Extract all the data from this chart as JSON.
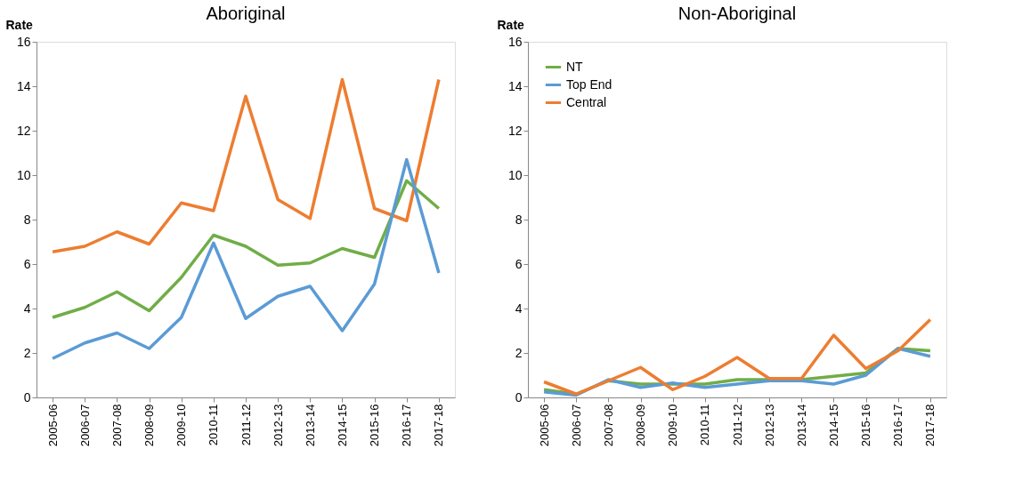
{
  "chart_data": [
    {
      "type": "line",
      "title": "Aboriginal",
      "ylabel": "Rate",
      "categories": [
        "2005-06",
        "2006-07",
        "2007-08",
        "2008-09",
        "2009-10",
        "2010-11",
        "2011-12",
        "2012-13",
        "2013-14",
        "2014-15",
        "2015-16",
        "2016-17",
        "2017-18"
      ],
      "ylim": [
        0,
        16
      ],
      "yticks": [
        0,
        2,
        4,
        6,
        8,
        10,
        12,
        14,
        16
      ],
      "grid": false,
      "legend": false,
      "marker": "none",
      "line_style": "solid",
      "series": [
        {
          "color": "#ed7d31",
          "values": [
            6.55,
            6.8,
            7.45,
            6.9,
            8.75,
            8.4,
            13.55,
            8.9,
            8.05,
            14.3,
            8.5,
            7.95,
            14.3
          ]
        },
        {
          "color": "#70ad47",
          "values": [
            3.6,
            4.05,
            4.75,
            3.9,
            5.4,
            7.3,
            6.8,
            5.95,
            6.05,
            6.7,
            6.3,
            9.75,
            8.5
          ]
        },
        {
          "color": "#5b9bd5",
          "values": [
            1.75,
            2.45,
            2.9,
            2.2,
            3.6,
            6.95,
            3.55,
            4.55,
            5.0,
            3.0,
            5.1,
            10.7,
            5.6
          ]
        }
      ]
    },
    {
      "type": "line",
      "title": "Non-Aboriginal",
      "ylabel": "Rate",
      "categories": [
        "2005-06",
        "2006-07",
        "2007-08",
        "2008-09",
        "2009-10",
        "2010-11",
        "2011-12",
        "2012-13",
        "2013-14",
        "2014-15",
        "2015-16",
        "2016-17",
        "2017-18"
      ],
      "ylim": [
        0,
        16
      ],
      "yticks": [
        0,
        2,
        4,
        6,
        8,
        10,
        12,
        14,
        16
      ],
      "grid": false,
      "legend": "top left",
      "marker": "none",
      "line_style": "solid",
      "series": [
        {
          "name": "NT",
          "color": "#70ad47",
          "values": [
            0.35,
            0.15,
            0.75,
            0.6,
            0.6,
            0.6,
            0.8,
            0.8,
            0.8,
            0.95,
            1.1,
            2.2,
            2.1
          ]
        },
        {
          "name": "Top End",
          "color": "#5b9bd5",
          "values": [
            0.25,
            0.1,
            0.8,
            0.45,
            0.65,
            0.45,
            0.6,
            0.75,
            0.75,
            0.6,
            1.0,
            2.2,
            1.85
          ]
        },
        {
          "name": "Central",
          "color": "#ed7d31",
          "values": [
            0.7,
            0.15,
            0.75,
            1.35,
            0.35,
            0.95,
            1.8,
            0.85,
            0.85,
            2.8,
            1.3,
            2.1,
            3.5
          ]
        }
      ]
    }
  ]
}
